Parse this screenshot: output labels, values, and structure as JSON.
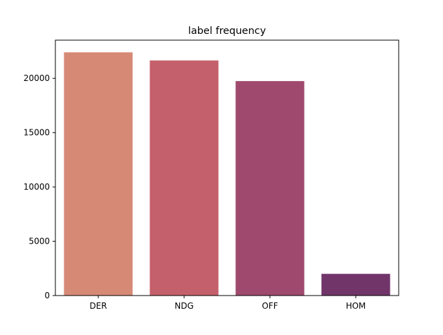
{
  "chart_data": {
    "type": "bar",
    "title": "label frequency",
    "xlabel": "",
    "ylabel": "",
    "categories": [
      "DER",
      "NDG",
      "OFF",
      "HOM"
    ],
    "values": [
      22400,
      21650,
      19750,
      2000
    ],
    "colors": [
      "#d68a75",
      "#c4606b",
      "#9e496d",
      "#71356a"
    ],
    "ylim": [
      0,
      23520
    ],
    "yticks": [
      0,
      5000,
      10000,
      15000,
      20000
    ],
    "grid": false,
    "legend": "none"
  }
}
